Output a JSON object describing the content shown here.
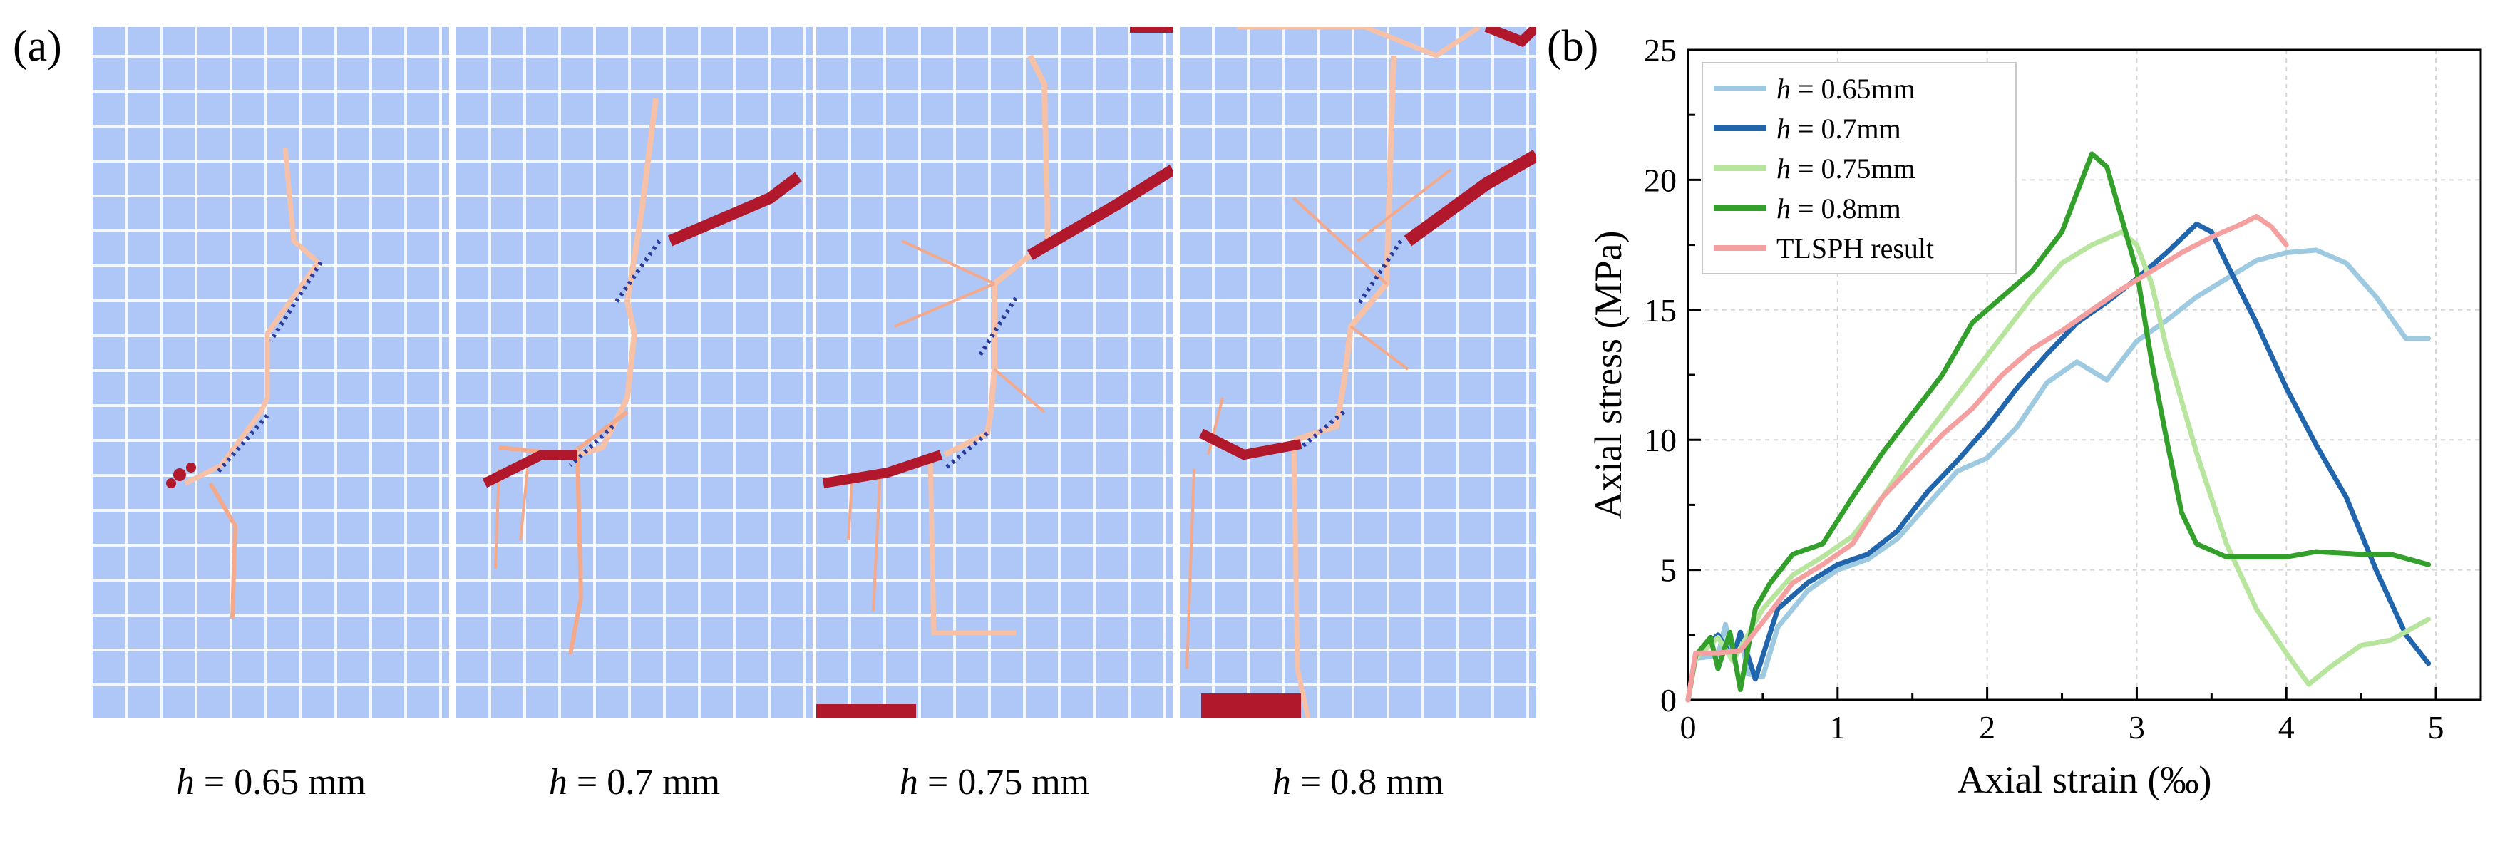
{
  "panels": {
    "a_label": "(a)",
    "b_label": "(b)"
  },
  "simulations": [
    {
      "h_symbol": "h",
      "caption": " = 0.65 mm"
    },
    {
      "h_symbol": "h",
      "caption": " = 0.7 mm"
    },
    {
      "h_symbol": "h",
      "caption": " = 0.75 mm"
    },
    {
      "h_symbol": "h",
      "caption": " = 0.8 mm"
    }
  ],
  "colors": {
    "particle_background": "#aec7f6",
    "crack_light": "#f4a98a",
    "crack_dark": "#b2182b",
    "flaw_dots": "#2b3a9a"
  },
  "chart_data": {
    "type": "line",
    "xlabel": "Axial strain (‰)",
    "ylabel": "Axial stress (MPa)",
    "xlim": [
      0,
      5.3
    ],
    "ylim": [
      0,
      25
    ],
    "xticks": [
      0,
      1,
      2,
      3,
      4,
      5
    ],
    "yticks": [
      0,
      5,
      10,
      15,
      20,
      25
    ],
    "grid": true,
    "legend_position": "top-left",
    "series": [
      {
        "name": "h = 0.65mm",
        "legend_symbol": "h",
        "legend_rest": " = 0.65mm",
        "color": "#9ecae1",
        "x": [
          0,
          0.05,
          0.2,
          0.25,
          0.3,
          0.35,
          0.4,
          0.5,
          0.6,
          0.8,
          1.0,
          1.2,
          1.4,
          1.6,
          1.8,
          2.0,
          2.2,
          2.4,
          2.6,
          2.8,
          3.0,
          3.2,
          3.4,
          3.6,
          3.8,
          4.0,
          4.2,
          4.4,
          4.6,
          4.8,
          4.95
        ],
        "y": [
          0,
          1.6,
          1.7,
          2.9,
          1.6,
          2.6,
          1.0,
          0.9,
          2.8,
          4.2,
          5.0,
          5.4,
          6.2,
          7.5,
          8.8,
          9.3,
          10.5,
          12.2,
          13.0,
          12.3,
          13.8,
          14.6,
          15.5,
          16.2,
          16.9,
          17.2,
          17.3,
          16.8,
          15.5,
          13.9,
          13.9
        ]
      },
      {
        "name": "h = 0.7mm",
        "legend_symbol": "h",
        "legend_rest": " = 0.7mm",
        "color": "#2166ac",
        "x": [
          0,
          0.05,
          0.2,
          0.3,
          0.35,
          0.45,
          0.6,
          0.8,
          1.0,
          1.2,
          1.4,
          1.6,
          1.8,
          2.0,
          2.2,
          2.4,
          2.6,
          2.8,
          3.0,
          3.2,
          3.4,
          3.5,
          3.6,
          3.8,
          4.0,
          4.2,
          4.4,
          4.6,
          4.8,
          4.95
        ],
        "y": [
          0,
          1.7,
          2.5,
          1.6,
          2.6,
          0.8,
          3.5,
          4.5,
          5.2,
          5.6,
          6.5,
          8.0,
          9.2,
          10.5,
          12.0,
          13.3,
          14.5,
          15.3,
          16.2,
          17.2,
          18.3,
          18.0,
          16.8,
          14.5,
          12.0,
          9.8,
          7.8,
          5.0,
          2.5,
          1.4
        ]
      },
      {
        "name": "h = 0.75mm",
        "legend_symbol": "h",
        "legend_rest": " = 0.75mm",
        "color": "#b8e59e",
        "x": [
          0,
          0.05,
          0.2,
          0.3,
          0.4,
          0.5,
          0.7,
          0.9,
          1.1,
          1.3,
          1.5,
          1.7,
          1.9,
          2.1,
          2.3,
          2.5,
          2.7,
          2.9,
          3.0,
          3.1,
          3.2,
          3.4,
          3.6,
          3.8,
          4.0,
          4.15,
          4.3,
          4.5,
          4.7,
          4.95
        ],
        "y": [
          0,
          1.6,
          2.4,
          1.5,
          2.5,
          3.5,
          4.8,
          5.5,
          6.3,
          7.8,
          9.5,
          11.0,
          12.5,
          14.0,
          15.5,
          16.8,
          17.5,
          18.0,
          17.5,
          16.0,
          13.5,
          9.5,
          6.0,
          3.5,
          1.8,
          0.6,
          1.3,
          2.1,
          2.3,
          3.1
        ]
      },
      {
        "name": "h = 0.8mm",
        "legend_symbol": "h",
        "legend_rest": " = 0.8mm",
        "color": "#33a02c",
        "x": [
          0,
          0.05,
          0.15,
          0.2,
          0.28,
          0.35,
          0.45,
          0.55,
          0.7,
          0.9,
          1.1,
          1.3,
          1.5,
          1.7,
          1.9,
          2.1,
          2.3,
          2.5,
          2.6,
          2.7,
          2.8,
          2.9,
          3.0,
          3.1,
          3.2,
          3.3,
          3.4,
          3.6,
          3.8,
          4.0,
          4.2,
          4.5,
          4.7,
          4.95
        ],
        "y": [
          0,
          1.7,
          2.4,
          1.2,
          2.6,
          0.4,
          3.5,
          4.5,
          5.6,
          6.0,
          7.8,
          9.5,
          11.0,
          12.5,
          14.5,
          15.5,
          16.5,
          18.0,
          19.5,
          21.0,
          20.5,
          18.5,
          16.5,
          13.0,
          10.0,
          7.2,
          6.0,
          5.5,
          5.5,
          5.5,
          5.7,
          5.6,
          5.6,
          5.2
        ]
      },
      {
        "name": "TLSPH result",
        "legend_symbol": "",
        "legend_rest": "TLSPH result",
        "color": "#f4a0a0",
        "x": [
          0,
          0.05,
          0.2,
          0.35,
          0.5,
          0.7,
          0.9,
          1.1,
          1.3,
          1.5,
          1.7,
          1.9,
          2.1,
          2.3,
          2.5,
          2.7,
          2.9,
          3.1,
          3.3,
          3.5,
          3.7,
          3.8,
          3.9,
          4.0
        ],
        "y": [
          0,
          1.8,
          1.8,
          1.9,
          3.0,
          4.5,
          5.2,
          6.0,
          7.8,
          9.0,
          10.2,
          11.2,
          12.5,
          13.5,
          14.2,
          15.0,
          15.8,
          16.5,
          17.2,
          17.8,
          18.3,
          18.6,
          18.2,
          17.5
        ]
      }
    ]
  }
}
